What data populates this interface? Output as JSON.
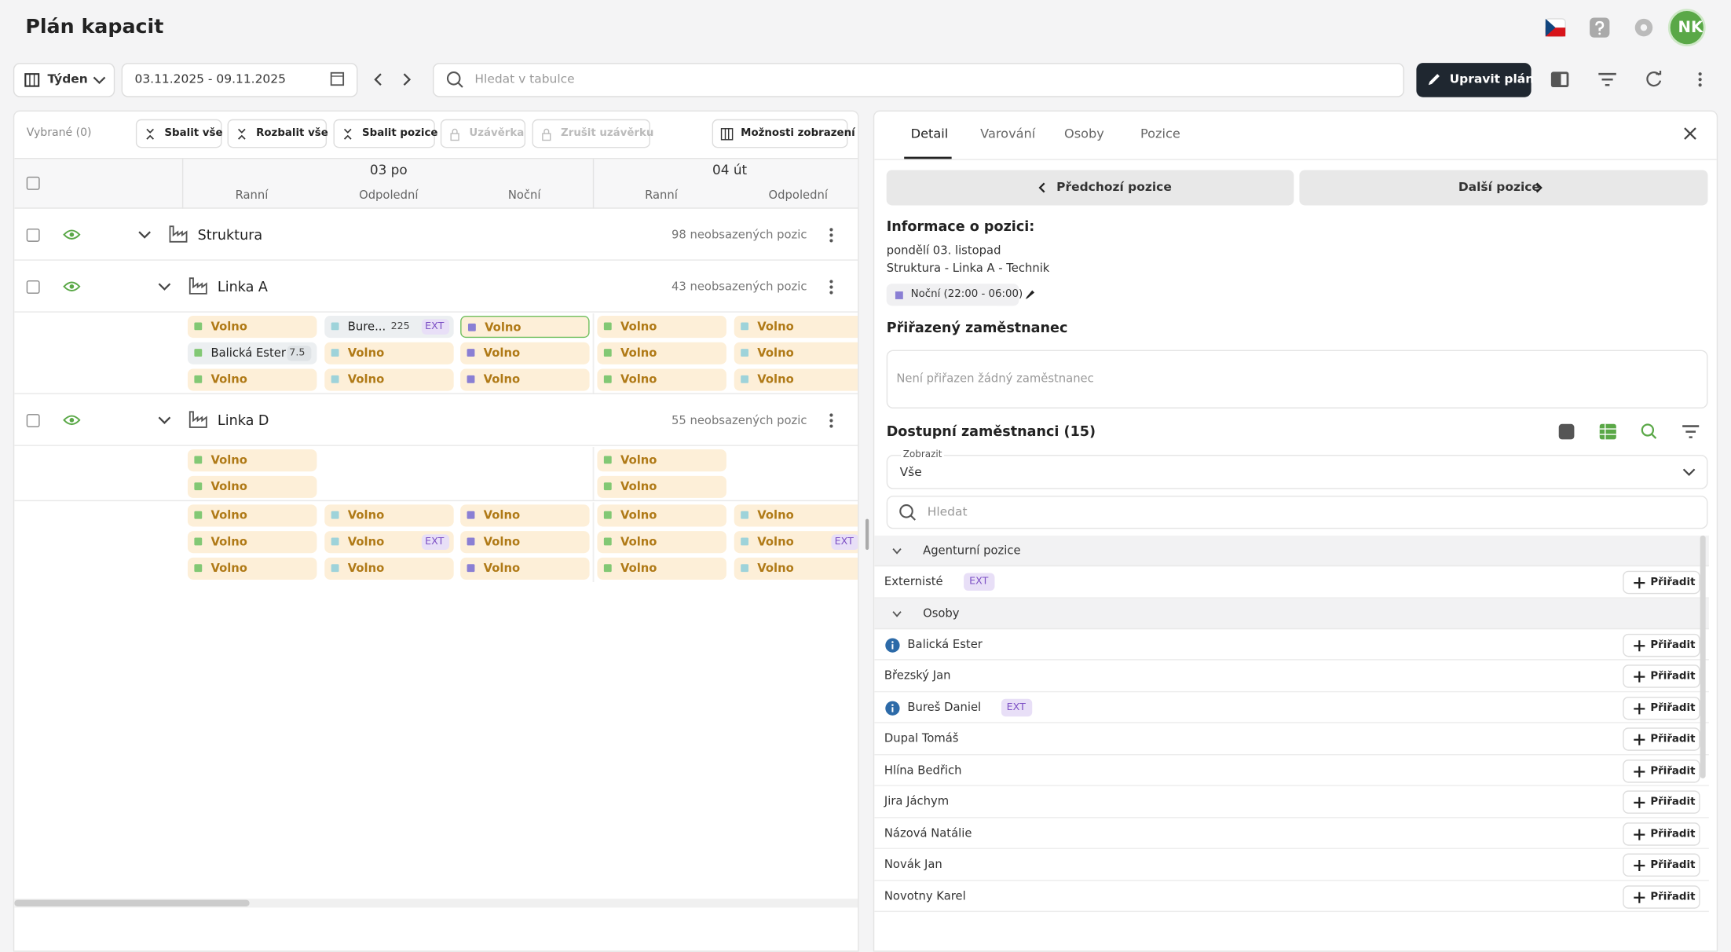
{
  "header": {
    "title": "Plán kapacit",
    "avatar": "NK"
  },
  "toolbar": {
    "view": "Týden",
    "date_range": "03.11.2025 - 09.11.2025",
    "search_placeholder": "Hledat v tabulce",
    "edit_button": "Upravit plán"
  },
  "table_toolbar": {
    "selected": "Vybrané (0)",
    "buttons": [
      "Sbalit vše",
      "Rozbalit vše",
      "Sbalit pozice",
      "Uzávěrka",
      "Zrušit uzávěrku"
    ],
    "view_options": "Možnosti zobrazení"
  },
  "days": [
    {
      "label": "03 po",
      "shifts": [
        "Ranní",
        "Odpolední",
        "Noční"
      ]
    },
    {
      "label": "04 út",
      "shifts": [
        "Ranní",
        "Odpolední"
      ]
    }
  ],
  "groups": [
    {
      "name": "Struktura",
      "summary": "98 neobsazených pozic"
    },
    {
      "name": "Linka A",
      "summary": "43 neobsazených pozic"
    },
    {
      "name": "Linka D",
      "summary": "55 neobsazených pozic"
    }
  ],
  "cell_blocks": [
    [
      [
        {
          "text": "Volno",
          "kind": "g"
        },
        {
          "text": "Bure...",
          "kind": "t",
          "badge": "225",
          "tag": "EXT"
        },
        {
          "text": "Volno",
          "kind": "p"
        },
        {
          "text": "Volno",
          "kind": "g"
        },
        {
          "text": "Volno",
          "kind": "t"
        }
      ],
      [
        {
          "text": "Balická Ester",
          "kind": "g",
          "badge": "7.5"
        },
        {
          "text": "Volno",
          "kind": "t"
        },
        {
          "text": "Volno",
          "kind": "p"
        },
        {
          "text": "Volno",
          "kind": "g"
        },
        {
          "text": "Volno",
          "kind": "t"
        }
      ],
      [
        {
          "text": "Volno",
          "kind": "g"
        },
        {
          "text": "Volno",
          "kind": "t"
        },
        {
          "text": "Volno",
          "kind": "p"
        },
        {
          "text": "Volno",
          "kind": "g"
        },
        {
          "text": "Volno",
          "kind": "t"
        }
      ]
    ],
    [
      [
        {
          "text": "Volno",
          "kind": "g"
        },
        null,
        null,
        {
          "text": "Volno",
          "kind": "g"
        },
        null
      ],
      [
        {
          "text": "Volno",
          "kind": "g"
        },
        null,
        null,
        {
          "text": "Volno",
          "kind": "g"
        },
        null
      ]
    ],
    [
      [
        {
          "text": "Volno",
          "kind": "g"
        },
        {
          "text": "Volno",
          "kind": "t"
        },
        {
          "text": "Volno",
          "kind": "p"
        },
        {
          "text": "Volno",
          "kind": "g"
        },
        {
          "text": "Volno",
          "kind": "t"
        }
      ],
      [
        {
          "text": "Volno",
          "kind": "g"
        },
        {
          "text": "Volno",
          "kind": "t",
          "tag": "EXT"
        },
        {
          "text": "Volno",
          "kind": "p"
        },
        {
          "text": "Volno",
          "kind": "g"
        },
        {
          "text": "Volno",
          "kind": "t",
          "tag": "EXT"
        }
      ],
      [
        {
          "text": "Volno",
          "kind": "g"
        },
        {
          "text": "Volno",
          "kind": "t"
        },
        {
          "text": "Volno",
          "kind": "p"
        },
        {
          "text": "Volno",
          "kind": "g"
        },
        {
          "text": "Volno",
          "kind": "t"
        }
      ]
    ]
  ],
  "detail": {
    "tabs": [
      "Detail",
      "Varování",
      "Osoby",
      "Pozice"
    ],
    "prev": "Předchozí pozice",
    "next": "Další pozice",
    "info_title": "Informace o pozici:",
    "date": "pondělí 03. listopad",
    "path": "Struktura - Linka A - Technik",
    "shift": "Noční (22:00 - 06:00)",
    "assigned_title": "Přiřazený zaměstnanec",
    "assigned_empty": "Není přiřazen žádný zaměstnanec",
    "available_title": "Dostupní zaměstnanci (15)",
    "filter_label": "Zobrazit",
    "filter_value": "Vše",
    "search_placeholder": "Hledat",
    "assign": "Přiřadit",
    "sections": [
      {
        "title": "Agenturní pozice",
        "items": [
          {
            "name": "Externisté",
            "tag": "EXT"
          }
        ]
      },
      {
        "title": "Osoby",
        "items": [
          {
            "name": "Balická Ester",
            "info": true
          },
          {
            "name": "Březský Jan"
          },
          {
            "name": "Bureš Daniel",
            "info": true,
            "tag": "EXT"
          },
          {
            "name": "Dupal Tomáš"
          },
          {
            "name": "Hlína Bedřich"
          },
          {
            "name": "Jira Jáchym"
          },
          {
            "name": "Názová Natálie"
          },
          {
            "name": "Novák Jan"
          },
          {
            "name": "Novotny Karel"
          }
        ]
      }
    ]
  }
}
